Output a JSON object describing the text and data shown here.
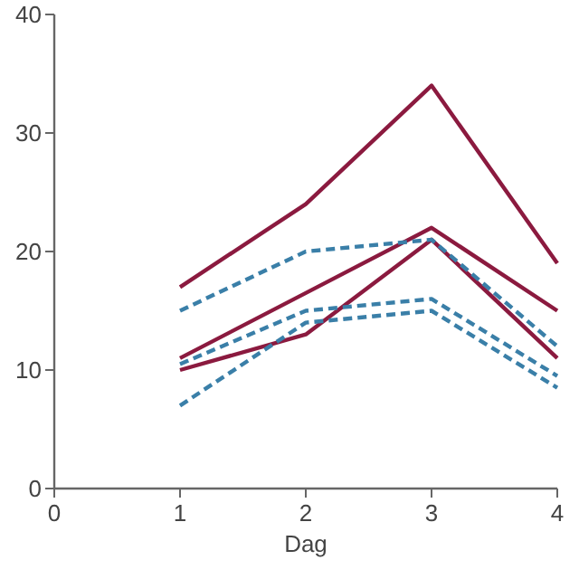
{
  "chart_data": {
    "type": "line",
    "xlabel": "Dag",
    "x": [
      1,
      2,
      3,
      4
    ],
    "xlim": [
      0,
      4
    ],
    "xticks": [
      0,
      1,
      2,
      3,
      4
    ],
    "ylim": [
      0,
      40
    ],
    "yticks": [
      0,
      10,
      20,
      30,
      40
    ],
    "grid": false,
    "marker": "none",
    "series": [
      {
        "color": "#8b1a3f",
        "line_style": "solid",
        "values": [
          17,
          24,
          34,
          19
        ]
      },
      {
        "color": "#8b1a3f",
        "line_style": "solid",
        "values": [
          11,
          16.5,
          22,
          15
        ]
      },
      {
        "color": "#8b1a3f",
        "line_style": "solid",
        "values": [
          10,
          13,
          21,
          11
        ]
      },
      {
        "color": "#3a7fa8",
        "line_style": "dashed",
        "values": [
          15,
          20,
          21,
          12
        ]
      },
      {
        "color": "#3a7fa8",
        "line_style": "dashed",
        "values": [
          10.5,
          15,
          16,
          9.5
        ]
      },
      {
        "color": "#3a7fa8",
        "line_style": "dashed",
        "values": [
          7,
          14,
          15,
          8.5
        ]
      }
    ]
  }
}
